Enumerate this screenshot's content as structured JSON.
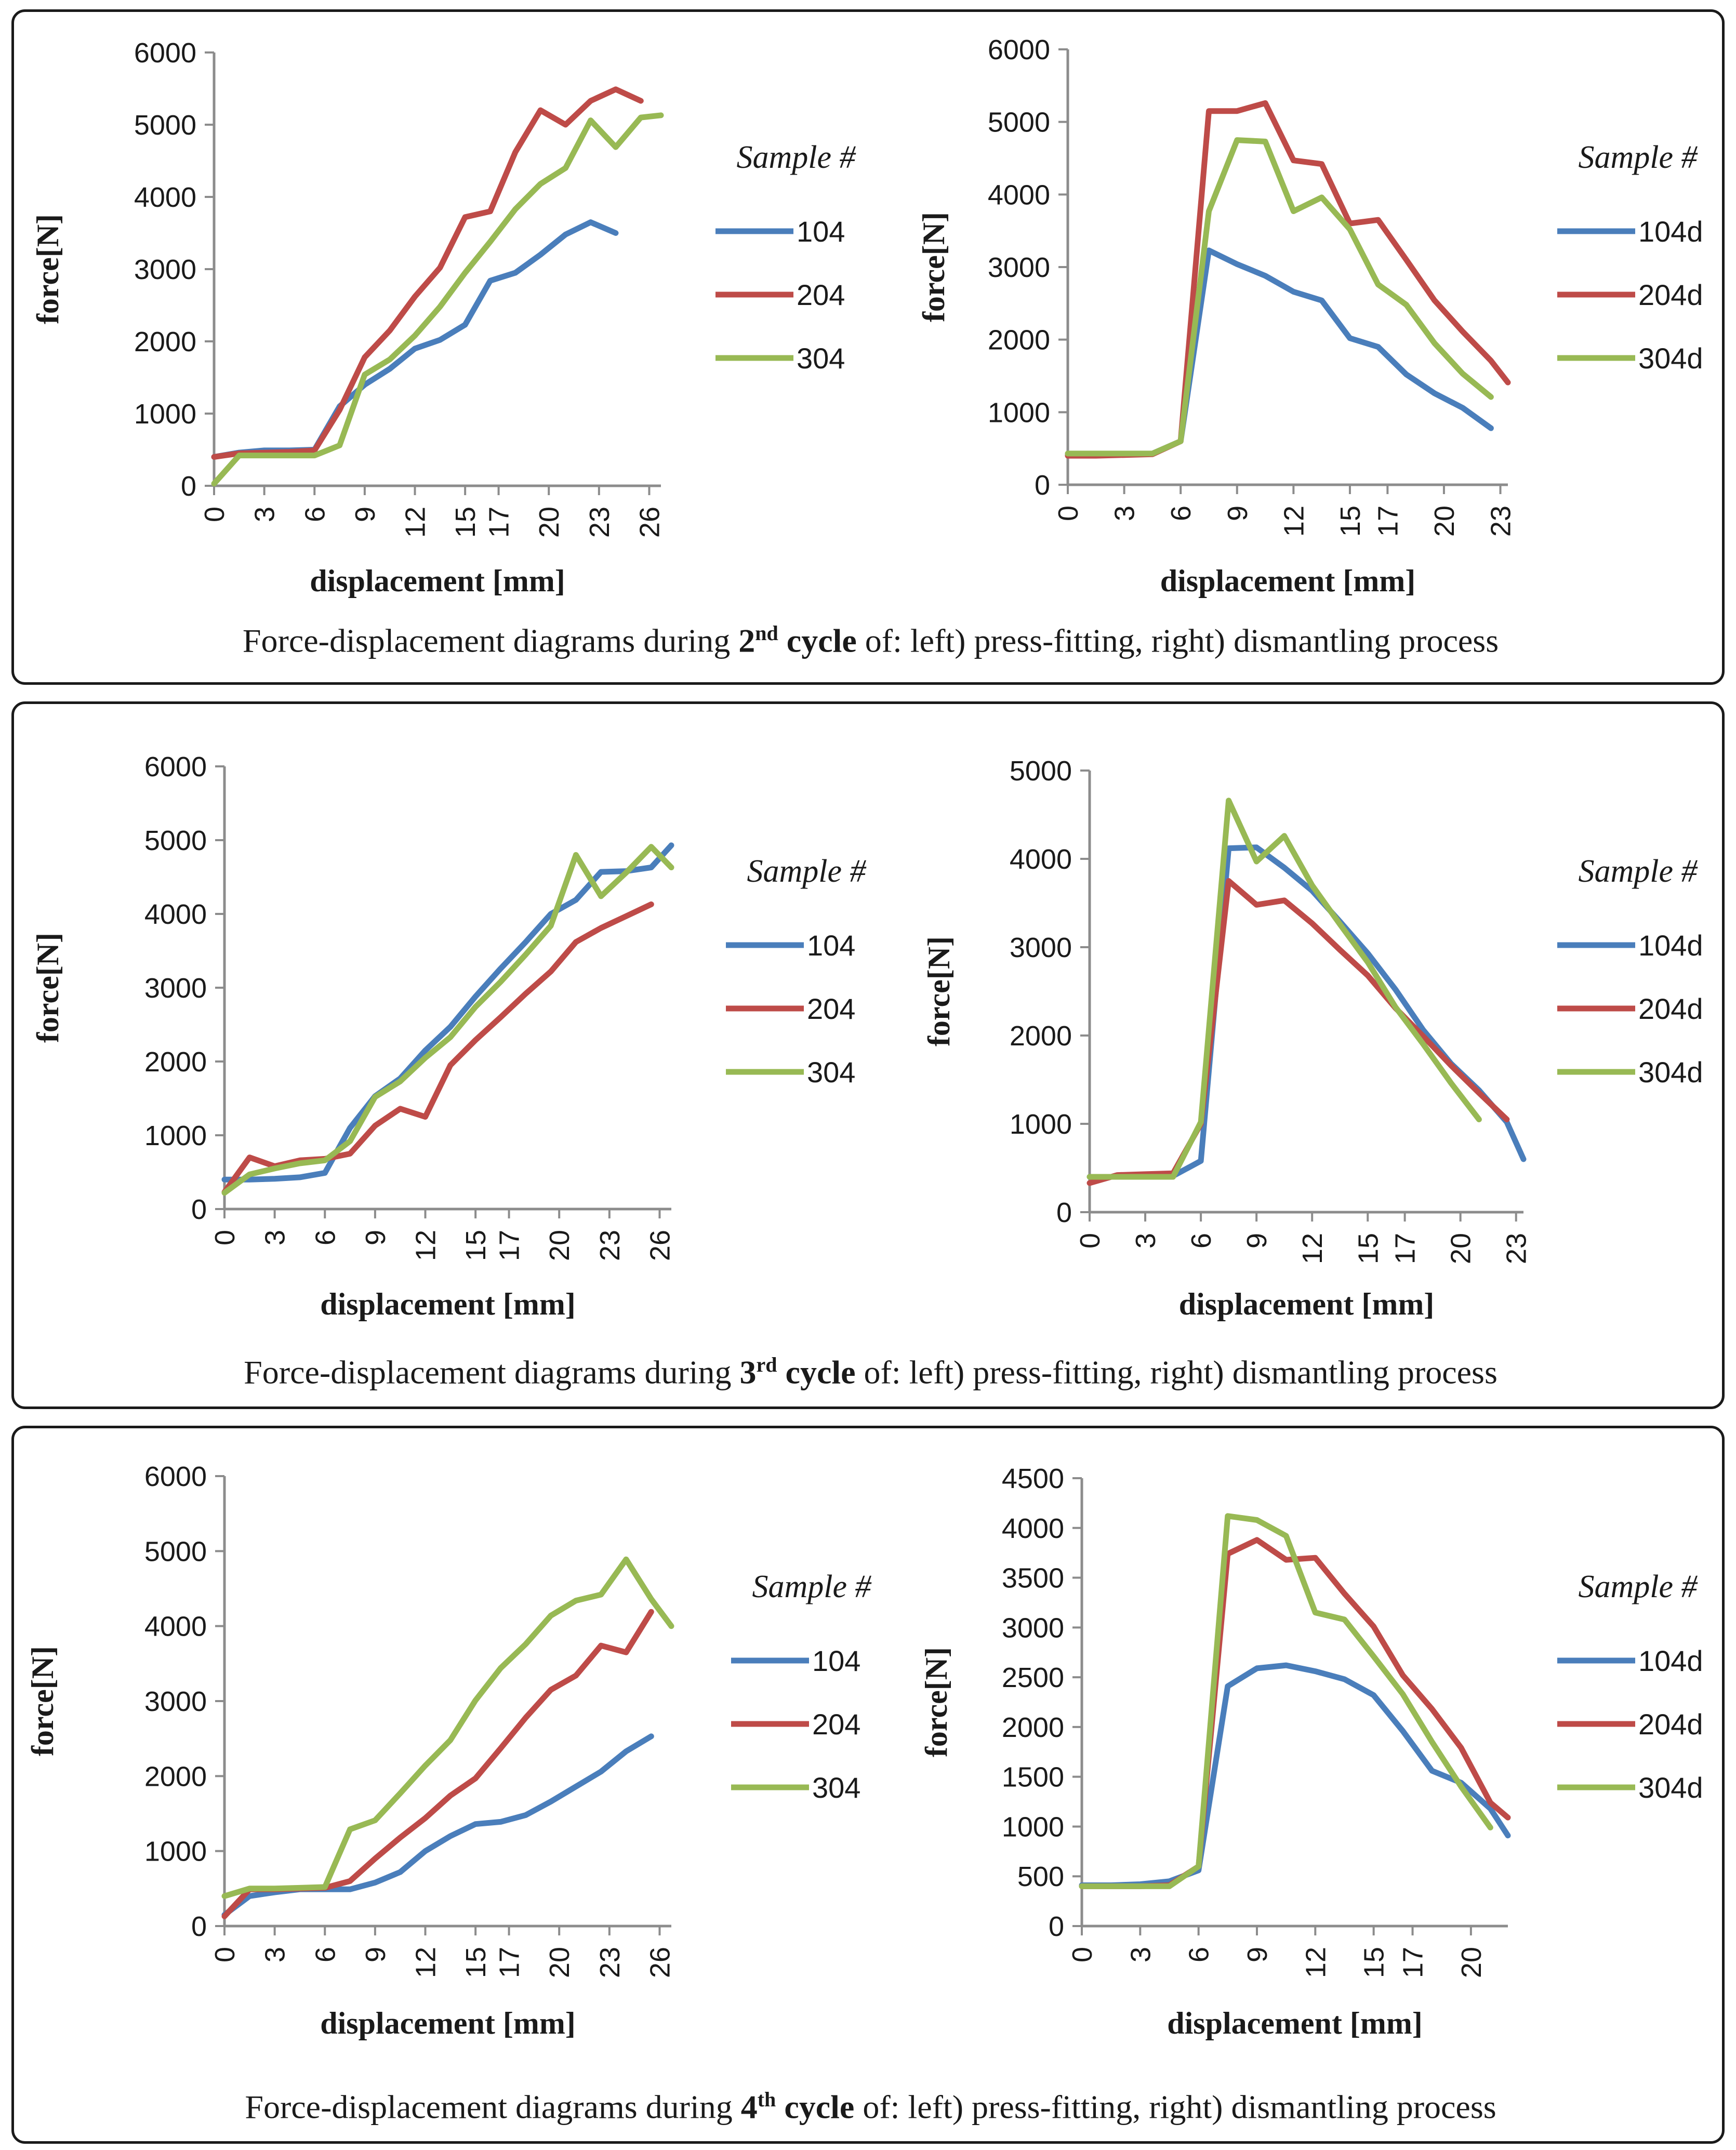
{
  "colors": {
    "s104": "#4a7ebb",
    "s204": "#be4b48",
    "s304": "#98b954",
    "axis": "#8c8c8c",
    "text": "#1a1a1a"
  },
  "panels": [
    {
      "cap_pre": "Force-displacement diagrams during ",
      "cap_num": "2",
      "cap_sup": "nd",
      "cap_cycle": " cycle",
      "cap_post": " of: left) press-fitting, right) dismantling process"
    },
    {
      "cap_pre": "Force-displacement diagrams during ",
      "cap_num": "3",
      "cap_sup": "rd",
      "cap_cycle": " cycle",
      "cap_post": " of: left) press-fitting, right) dismantling process"
    },
    {
      "cap_pre": "Force-displacement diagrams during ",
      "cap_num": "4",
      "cap_sup": "th",
      "cap_cycle": " cycle",
      "cap_post": " of: left) press-fitting, right) dismantling process"
    }
  ],
  "chart_data": [
    {
      "type": "line",
      "id": "c2-press",
      "xlabel": "displacement [mm]",
      "ylabel": "force[N]",
      "legend_title": "Sample #",
      "xticks": [
        "0",
        "3",
        "6",
        "9",
        "12",
        "15",
        "17",
        "20",
        "23",
        "26"
      ],
      "xmax": 26.7,
      "yticks": [
        "0",
        "1000",
        "2000",
        "3000",
        "4000",
        "5000",
        "6000"
      ],
      "ylim": [
        0,
        6000
      ],
      "series": [
        {
          "name": "104",
          "color": "#4a7ebb",
          "x": [
            0,
            1.5,
            3,
            4.5,
            6,
            7.5,
            9,
            10.5,
            12,
            13.5,
            15,
            16.5,
            18,
            19.5,
            21,
            22.5,
            24
          ],
          "y": [
            400,
            460,
            490,
            490,
            500,
            1100,
            1400,
            1620,
            1900,
            2020,
            2230,
            2840,
            2950,
            3200,
            3480,
            3650,
            3500
          ]
        },
        {
          "name": "204",
          "color": "#be4b48",
          "x": [
            0,
            1.5,
            3,
            4.5,
            6,
            7.5,
            9,
            10.5,
            12,
            13.5,
            15,
            16.5,
            18,
            19.5,
            21,
            22.5,
            24,
            25.5
          ],
          "y": [
            400,
            450,
            460,
            470,
            490,
            1050,
            1780,
            2150,
            2620,
            3020,
            3720,
            3800,
            4620,
            5200,
            5000,
            5330,
            5490,
            5330
          ]
        },
        {
          "name": "304",
          "color": "#98b954",
          "x": [
            0,
            1.5,
            3,
            4.5,
            6,
            7.5,
            9,
            10.5,
            12,
            13.5,
            15,
            16.5,
            18,
            19.5,
            21,
            22.5,
            24,
            25.5,
            27
          ],
          "y": [
            30,
            420,
            420,
            420,
            420,
            560,
            1540,
            1750,
            2080,
            2480,
            2950,
            3380,
            3830,
            4180,
            4400,
            5060,
            4690,
            5100,
            5130
          ]
        }
      ]
    },
    {
      "type": "line",
      "id": "c2-dismantle",
      "xlabel": "displacement [mm]",
      "ylabel": "force[N]",
      "legend_title": "Sample #",
      "xticks": [
        "0",
        "3",
        "6",
        "9",
        "12",
        "15",
        "17",
        "20",
        "23"
      ],
      "xmax": 23.4,
      "yticks": [
        "0",
        "1000",
        "2000",
        "3000",
        "4000",
        "5000",
        "6000"
      ],
      "ylim": [
        0,
        6000
      ],
      "series": [
        {
          "name": "104d",
          "color": "#4a7ebb",
          "x": [
            0,
            1.5,
            3,
            4.5,
            6,
            7.5,
            9,
            10.5,
            12,
            13.5,
            15,
            16.5,
            18,
            19.5,
            21,
            22.5
          ],
          "y": [
            420,
            420,
            420,
            430,
            600,
            3230,
            3040,
            2880,
            2660,
            2540,
            2020,
            1900,
            1520,
            1260,
            1060,
            780
          ]
        },
        {
          "name": "204d",
          "color": "#be4b48",
          "x": [
            0,
            1.5,
            3,
            4.5,
            6,
            7.5,
            9,
            10.5,
            12,
            13.5,
            15,
            16.5,
            18,
            19.5,
            21,
            22.5,
            24
          ],
          "y": [
            400,
            400,
            410,
            420,
            600,
            5150,
            5150,
            5260,
            4470,
            4420,
            3600,
            3650,
            3100,
            2540,
            2110,
            1710,
            1410
          ]
        },
        {
          "name": "304d",
          "color": "#98b954",
          "x": [
            0,
            1.5,
            3,
            4.5,
            6,
            7.5,
            9,
            10.5,
            12,
            13.5,
            15,
            16.5,
            18,
            19.5,
            21,
            22.5
          ],
          "y": [
            430,
            430,
            430,
            430,
            600,
            3770,
            4750,
            4730,
            3770,
            3960,
            3520,
            2760,
            2480,
            1950,
            1530,
            1210
          ]
        }
      ]
    },
    {
      "type": "line",
      "id": "c3-press",
      "xlabel": "displacement [mm]",
      "ylabel": "force[N]",
      "legend_title": "Sample #",
      "xticks": [
        "0",
        "3",
        "6",
        "9",
        "12",
        "15",
        "17",
        "20",
        "23",
        "26"
      ],
      "xmax": 26.7,
      "yticks": [
        "0",
        "1000",
        "2000",
        "3000",
        "4000",
        "5000",
        "6000"
      ],
      "ylim": [
        0,
        6000
      ],
      "series": [
        {
          "name": "104",
          "color": "#4a7ebb",
          "x": [
            0,
            1.5,
            3,
            4.5,
            6,
            7.5,
            9,
            10.5,
            12,
            13.5,
            15,
            16.5,
            18,
            19.5,
            21,
            22.5,
            24,
            25.5,
            27
          ],
          "y": [
            400,
            400,
            410,
            430,
            490,
            1100,
            1530,
            1770,
            2150,
            2470,
            2880,
            3260,
            3620,
            4000,
            4190,
            4570,
            4580,
            4630,
            4930
          ]
        },
        {
          "name": "204",
          "color": "#be4b48",
          "x": [
            0,
            1.5,
            3,
            4.5,
            6,
            7.5,
            9,
            10.5,
            12,
            13.5,
            15,
            16.5,
            18,
            19.5,
            21,
            22.5,
            24,
            25.5
          ],
          "y": [
            230,
            700,
            580,
            660,
            680,
            750,
            1130,
            1360,
            1250,
            1950,
            2290,
            2600,
            2920,
            3220,
            3620,
            3810,
            3970,
            4130
          ]
        },
        {
          "name": "304",
          "color": "#98b954",
          "x": [
            0,
            1.5,
            3,
            4.5,
            6,
            7.5,
            9,
            10.5,
            12,
            13.5,
            15,
            16.5,
            18,
            19.5,
            21,
            22.5,
            24,
            25.5,
            27
          ],
          "y": [
            220,
            470,
            550,
            620,
            660,
            920,
            1520,
            1730,
            2050,
            2330,
            2740,
            3080,
            3450,
            3840,
            4800,
            4240,
            4560,
            4910,
            4630
          ]
        }
      ]
    },
    {
      "type": "line",
      "id": "c3-dismantle",
      "xlabel": "displacement [mm]",
      "ylabel": "force[N]",
      "legend_title": "Sample #",
      "xticks": [
        "0",
        "3",
        "6",
        "9",
        "12",
        "15",
        "17",
        "20",
        "23"
      ],
      "xmax": 23.4,
      "yticks": [
        "0",
        "1000",
        "2000",
        "3000",
        "4000",
        "5000"
      ],
      "ylim": [
        0,
        5000
      ],
      "series": [
        {
          "name": "104d",
          "color": "#4a7ebb",
          "x": [
            0,
            1.5,
            3,
            4.5,
            6,
            7.5,
            9,
            10.5,
            12,
            13.5,
            15,
            16.5,
            18,
            19.5,
            21,
            22.5,
            24
          ],
          "y": [
            400,
            400,
            400,
            410,
            580,
            4120,
            4130,
            3900,
            3640,
            3290,
            2930,
            2520,
            2060,
            1680,
            1380,
            1020,
            600
          ]
        },
        {
          "name": "204d",
          "color": "#be4b48",
          "x": [
            0,
            1.5,
            3,
            4.5,
            6,
            7.5,
            9,
            10.5,
            12,
            13.5,
            15,
            16.5,
            18,
            19.5,
            21,
            22.5
          ],
          "y": [
            330,
            420,
            430,
            440,
            1000,
            3750,
            3480,
            3530,
            3270,
            2970,
            2680,
            2310,
            1990,
            1660,
            1350,
            1050
          ]
        },
        {
          "name": "304d",
          "color": "#98b954",
          "x": [
            0,
            1.5,
            3,
            4.5,
            6,
            7.5,
            9,
            10.5,
            12,
            13.5,
            15,
            16.5,
            18,
            19.5,
            21
          ],
          "y": [
            400,
            400,
            400,
            400,
            1020,
            4660,
            3970,
            4260,
            3700,
            3260,
            2830,
            2320,
            1900,
            1460,
            1050
          ]
        }
      ]
    },
    {
      "type": "line",
      "id": "c4-press",
      "xlabel": "displacement [mm]",
      "ylabel": "force[N]",
      "legend_title": "Sample #",
      "xticks": [
        "0",
        "3",
        "6",
        "9",
        "12",
        "15",
        "17",
        "20",
        "23",
        "26"
      ],
      "xmax": 26.7,
      "yticks": [
        "0",
        "1000",
        "2000",
        "3000",
        "4000",
        "5000",
        "6000"
      ],
      "ylim": [
        0,
        6000
      ],
      "series": [
        {
          "name": "104",
          "color": "#4a7ebb",
          "x": [
            0,
            1.5,
            3,
            4.5,
            6,
            7.5,
            9,
            10.5,
            12,
            13.5,
            15,
            16.5,
            18,
            19.5,
            21,
            22.5,
            24,
            25.5
          ],
          "y": [
            150,
            400,
            450,
            490,
            490,
            490,
            580,
            720,
            1000,
            1200,
            1360,
            1390,
            1480,
            1660,
            1860,
            2060,
            2330,
            2530
          ]
        },
        {
          "name": "204",
          "color": "#be4b48",
          "x": [
            0,
            1.5,
            3,
            4.5,
            6,
            7.5,
            9,
            10.5,
            12,
            13.5,
            15,
            16.5,
            18,
            19.5,
            21,
            22.5,
            24,
            25.5
          ],
          "y": [
            130,
            490,
            490,
            500,
            510,
            600,
            900,
            1180,
            1440,
            1740,
            1970,
            2370,
            2780,
            3150,
            3340,
            3740,
            3650,
            4190
          ]
        },
        {
          "name": "304",
          "color": "#98b954",
          "x": [
            0,
            1.5,
            3,
            4.5,
            6,
            7.5,
            9,
            10.5,
            12,
            13.5,
            15,
            16.5,
            18,
            19.5,
            21,
            22.5,
            24,
            25.5,
            27
          ],
          "y": [
            400,
            500,
            500,
            510,
            520,
            1290,
            1410,
            1770,
            2140,
            2480,
            3010,
            3440,
            3760,
            4140,
            4340,
            4420,
            4890,
            4360,
            4000
          ]
        }
      ]
    },
    {
      "type": "line",
      "id": "c4-dismantle",
      "xlabel": "displacement [mm]",
      "ylabel": "force[N]",
      "legend_title": "Sample #",
      "xticks": [
        "0",
        "3",
        "6",
        "9",
        "12",
        "15",
        "17",
        "20"
      ],
      "xmax": 21.9,
      "yticks": [
        "0",
        "500",
        "1000",
        "1500",
        "2000",
        "2500",
        "3000",
        "3500",
        "4000",
        "4500"
      ],
      "ylim": [
        0,
        4500
      ],
      "series": [
        {
          "name": "104d",
          "color": "#4a7ebb",
          "x": [
            0,
            1.5,
            3,
            4.5,
            6,
            7.5,
            9,
            10.5,
            12,
            13.5,
            15,
            16.5,
            18,
            19.5,
            21,
            22.5
          ],
          "y": [
            410,
            410,
            420,
            450,
            560,
            2410,
            2590,
            2620,
            2560,
            2480,
            2320,
            1960,
            1560,
            1440,
            1180,
            910
          ]
        },
        {
          "name": "204d",
          "color": "#be4b48",
          "x": [
            0,
            1.5,
            3,
            4.5,
            6,
            7.5,
            9,
            10.5,
            12,
            13.5,
            15,
            16.5,
            18,
            19.5,
            21,
            22.5
          ],
          "y": [
            400,
            400,
            400,
            410,
            600,
            3740,
            3880,
            3680,
            3700,
            3340,
            3010,
            2520,
            2180,
            1790,
            1240,
            1090
          ]
        },
        {
          "name": "304d",
          "color": "#98b954",
          "x": [
            0,
            1.5,
            3,
            4.5,
            6,
            7.5,
            9,
            10.5,
            12,
            13.5,
            15,
            16.5,
            18,
            19.5,
            21
          ],
          "y": [
            400,
            400,
            400,
            400,
            600,
            4120,
            4080,
            3920,
            3150,
            3080,
            2710,
            2330,
            1850,
            1400,
            990
          ]
        }
      ]
    }
  ]
}
